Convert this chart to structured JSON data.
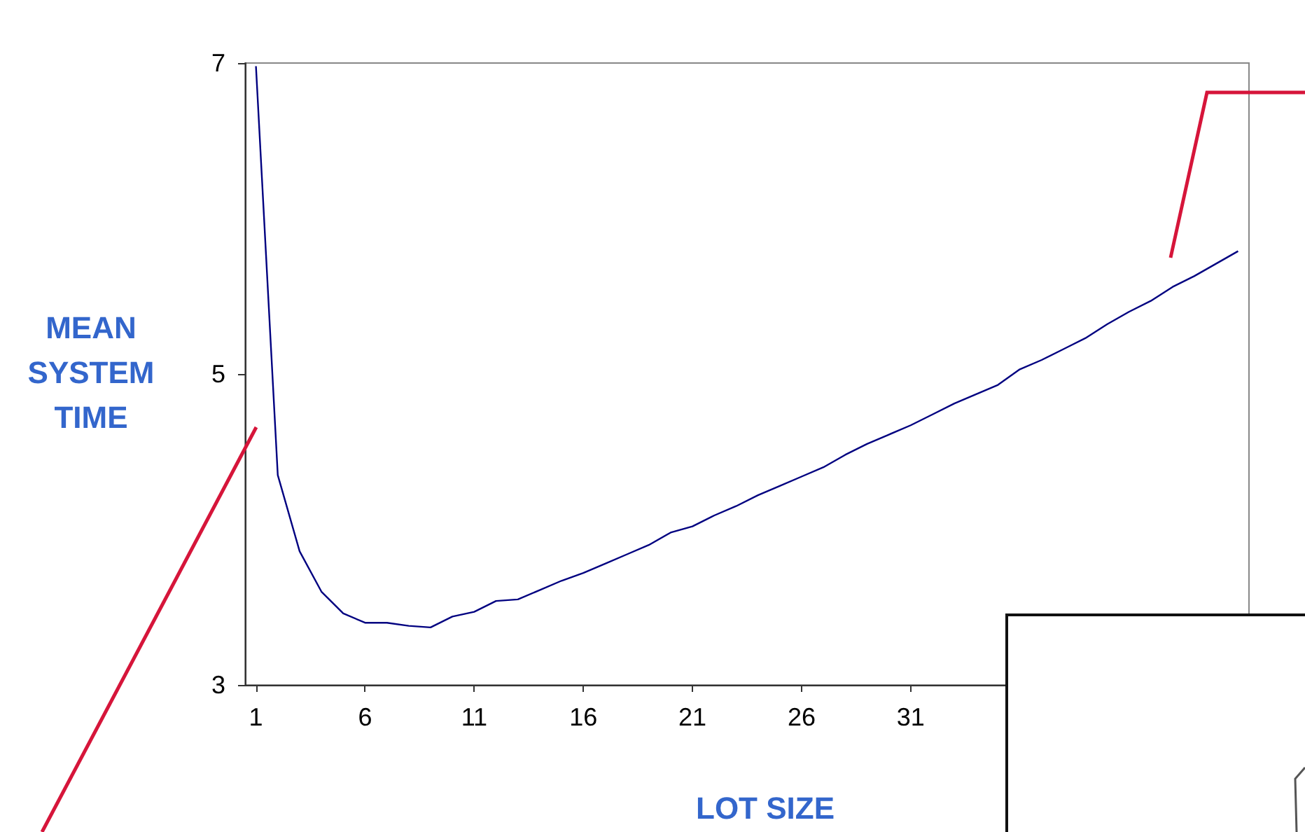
{
  "chart_data": {
    "type": "line",
    "xlabel": "LOT SIZE",
    "ylabel": "MEAN SYSTEM TIME",
    "x": [
      1,
      2,
      3,
      4,
      5,
      6,
      7,
      8,
      9,
      10,
      11,
      12,
      13,
      14,
      15,
      16,
      17,
      18,
      19,
      20,
      21,
      22,
      23,
      24,
      25,
      26,
      27,
      28,
      29,
      30,
      31,
      32,
      33,
      34,
      35,
      36,
      37,
      38,
      39,
      40,
      41,
      42,
      43,
      44,
      45,
      46
    ],
    "series": [
      {
        "color": "#000080",
        "values": [
          6.98,
          4.35,
          3.86,
          3.6,
          3.46,
          3.4,
          3.4,
          3.38,
          3.37,
          3.44,
          3.47,
          3.54,
          3.55,
          3.61,
          3.67,
          3.72,
          3.78,
          3.84,
          3.9,
          3.98,
          4.02,
          4.09,
          4.15,
          4.22,
          4.28,
          4.34,
          4.4,
          4.48,
          4.55,
          4.61,
          4.67,
          4.74,
          4.81,
          4.87,
          4.93,
          5.03,
          5.09,
          5.16,
          5.23,
          5.32,
          5.4,
          5.47,
          5.56,
          5.63,
          5.71,
          5.79
        ]
      }
    ],
    "xlim": [
      0.5,
      46.5
    ],
    "xticks": [
      1,
      6,
      11,
      16,
      21,
      26,
      31
    ],
    "ylim": [
      3,
      7
    ],
    "yticks": [
      3,
      5,
      7
    ],
    "grid": false,
    "marker": "none",
    "line_style": "solid"
  }
}
